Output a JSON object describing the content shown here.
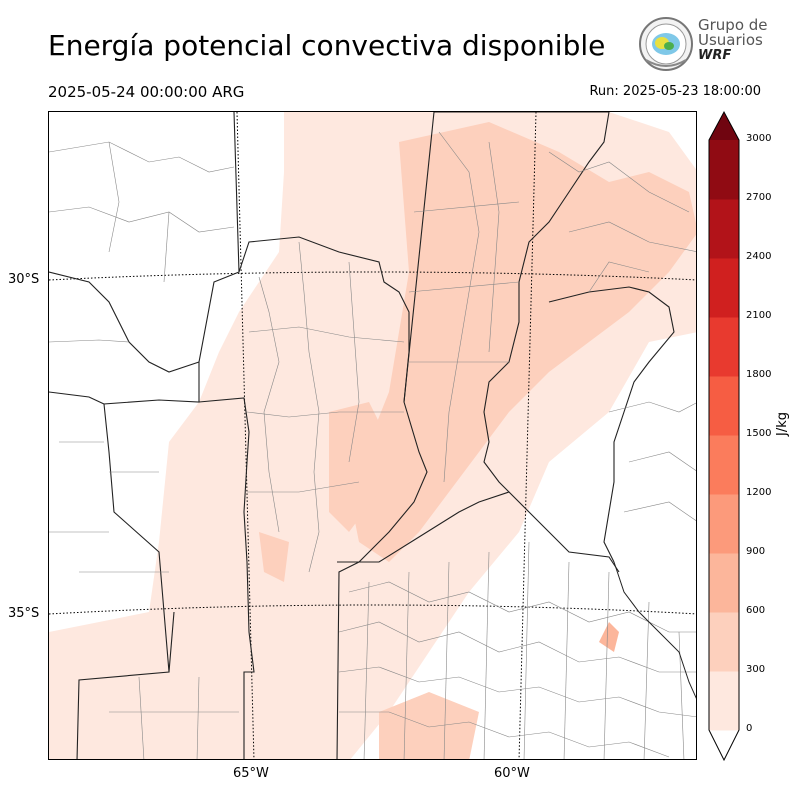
{
  "title": "Energía potencial convectiva disponible",
  "valid_time": "2025-05-24 00:00:00 ARG",
  "run_time": "Run: 2025-05-23 18:00:00",
  "logo": {
    "line1": "Grupo de",
    "line2": "Usuarios",
    "line3": "WRF"
  },
  "map": {
    "lat_labels": [
      "30°S",
      "35°S"
    ],
    "lon_labels": [
      "65°W",
      "60°W"
    ]
  },
  "colorbar": {
    "unit": "J/kg",
    "ticks": [
      "0",
      "300",
      "600",
      "900",
      "1200",
      "1500",
      "1800",
      "2100",
      "2400",
      "2700",
      "3000"
    ],
    "colors": [
      "#fee8df",
      "#fdd0bd",
      "#fcb69b",
      "#fc9a7b",
      "#fb7c5c",
      "#f65d43",
      "#e83a2f",
      "#d0201f",
      "#b21319",
      "#900b13",
      "#700510"
    ]
  }
}
